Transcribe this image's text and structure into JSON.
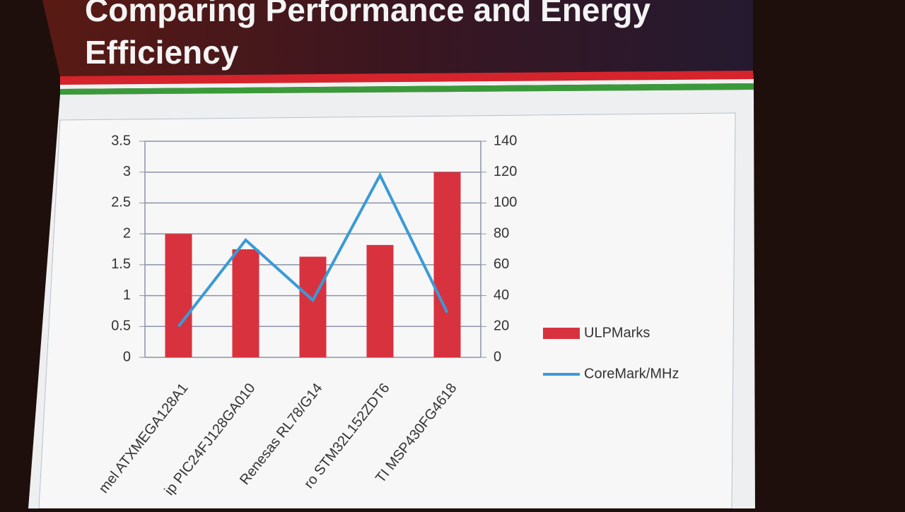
{
  "chart_data": {
    "type": "bar_line",
    "title": "Comparing Performance and Energy Efficiency",
    "categories": [
      "mel ATXMEGA128A1",
      "ip PIC24FJ128GA010",
      "Renesas RL78/G14",
      "ro STM32L152ZDT6",
      "TI MSP430FG4618"
    ],
    "series": [
      {
        "name": "ULPMarks",
        "color": "#d8323e",
        "type": "bar",
        "values": [
          2.0,
          1.75,
          1.63,
          1.82,
          3.0
        ]
      },
      {
        "name": "CoreMark/MHz",
        "color": "#3a9ad8",
        "type": "line",
        "axis": "y2",
        "values": [
          20,
          76,
          37,
          118,
          29
        ]
      }
    ],
    "ylim": [
      0,
      3.5
    ],
    "yticks": [
      0,
      0.5,
      1,
      1.5,
      2,
      2.5,
      3,
      3.5
    ],
    "y2lim": [
      0,
      140
    ],
    "y2ticks": [
      0,
      20,
      40,
      60,
      80,
      100,
      120,
      140
    ],
    "grid": true,
    "legend": "right"
  }
}
